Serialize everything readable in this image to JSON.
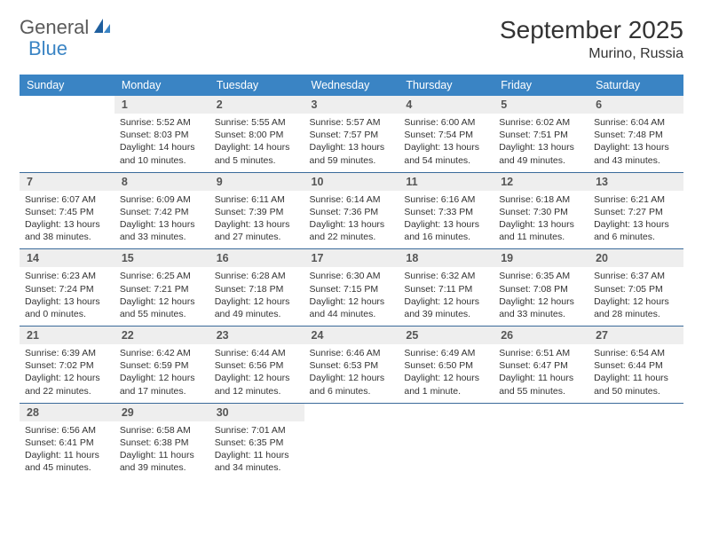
{
  "logo": {
    "part1": "General",
    "part2": "Blue"
  },
  "title": "September 2025",
  "location": "Murino, Russia",
  "days_of_week": [
    "Sunday",
    "Monday",
    "Tuesday",
    "Wednesday",
    "Thursday",
    "Friday",
    "Saturday"
  ],
  "colors": {
    "header_bg": "#3a84c4",
    "header_text": "#ffffff",
    "daynum_bg": "#eeeeee",
    "row_border": "#3a6a9a",
    "logo_blue": "#3a84c4",
    "logo_gray": "#5a5a5a"
  },
  "weeks": [
    [
      {
        "n": "",
        "sunrise": "",
        "sunset": "",
        "daylight": ""
      },
      {
        "n": "1",
        "sunrise": "Sunrise: 5:52 AM",
        "sunset": "Sunset: 8:03 PM",
        "daylight": "Daylight: 14 hours and 10 minutes."
      },
      {
        "n": "2",
        "sunrise": "Sunrise: 5:55 AM",
        "sunset": "Sunset: 8:00 PM",
        "daylight": "Daylight: 14 hours and 5 minutes."
      },
      {
        "n": "3",
        "sunrise": "Sunrise: 5:57 AM",
        "sunset": "Sunset: 7:57 PM",
        "daylight": "Daylight: 13 hours and 59 minutes."
      },
      {
        "n": "4",
        "sunrise": "Sunrise: 6:00 AM",
        "sunset": "Sunset: 7:54 PM",
        "daylight": "Daylight: 13 hours and 54 minutes."
      },
      {
        "n": "5",
        "sunrise": "Sunrise: 6:02 AM",
        "sunset": "Sunset: 7:51 PM",
        "daylight": "Daylight: 13 hours and 49 minutes."
      },
      {
        "n": "6",
        "sunrise": "Sunrise: 6:04 AM",
        "sunset": "Sunset: 7:48 PM",
        "daylight": "Daylight: 13 hours and 43 minutes."
      }
    ],
    [
      {
        "n": "7",
        "sunrise": "Sunrise: 6:07 AM",
        "sunset": "Sunset: 7:45 PM",
        "daylight": "Daylight: 13 hours and 38 minutes."
      },
      {
        "n": "8",
        "sunrise": "Sunrise: 6:09 AM",
        "sunset": "Sunset: 7:42 PM",
        "daylight": "Daylight: 13 hours and 33 minutes."
      },
      {
        "n": "9",
        "sunrise": "Sunrise: 6:11 AM",
        "sunset": "Sunset: 7:39 PM",
        "daylight": "Daylight: 13 hours and 27 minutes."
      },
      {
        "n": "10",
        "sunrise": "Sunrise: 6:14 AM",
        "sunset": "Sunset: 7:36 PM",
        "daylight": "Daylight: 13 hours and 22 minutes."
      },
      {
        "n": "11",
        "sunrise": "Sunrise: 6:16 AM",
        "sunset": "Sunset: 7:33 PM",
        "daylight": "Daylight: 13 hours and 16 minutes."
      },
      {
        "n": "12",
        "sunrise": "Sunrise: 6:18 AM",
        "sunset": "Sunset: 7:30 PM",
        "daylight": "Daylight: 13 hours and 11 minutes."
      },
      {
        "n": "13",
        "sunrise": "Sunrise: 6:21 AM",
        "sunset": "Sunset: 7:27 PM",
        "daylight": "Daylight: 13 hours and 6 minutes."
      }
    ],
    [
      {
        "n": "14",
        "sunrise": "Sunrise: 6:23 AM",
        "sunset": "Sunset: 7:24 PM",
        "daylight": "Daylight: 13 hours and 0 minutes."
      },
      {
        "n": "15",
        "sunrise": "Sunrise: 6:25 AM",
        "sunset": "Sunset: 7:21 PM",
        "daylight": "Daylight: 12 hours and 55 minutes."
      },
      {
        "n": "16",
        "sunrise": "Sunrise: 6:28 AM",
        "sunset": "Sunset: 7:18 PM",
        "daylight": "Daylight: 12 hours and 49 minutes."
      },
      {
        "n": "17",
        "sunrise": "Sunrise: 6:30 AM",
        "sunset": "Sunset: 7:15 PM",
        "daylight": "Daylight: 12 hours and 44 minutes."
      },
      {
        "n": "18",
        "sunrise": "Sunrise: 6:32 AM",
        "sunset": "Sunset: 7:11 PM",
        "daylight": "Daylight: 12 hours and 39 minutes."
      },
      {
        "n": "19",
        "sunrise": "Sunrise: 6:35 AM",
        "sunset": "Sunset: 7:08 PM",
        "daylight": "Daylight: 12 hours and 33 minutes."
      },
      {
        "n": "20",
        "sunrise": "Sunrise: 6:37 AM",
        "sunset": "Sunset: 7:05 PM",
        "daylight": "Daylight: 12 hours and 28 minutes."
      }
    ],
    [
      {
        "n": "21",
        "sunrise": "Sunrise: 6:39 AM",
        "sunset": "Sunset: 7:02 PM",
        "daylight": "Daylight: 12 hours and 22 minutes."
      },
      {
        "n": "22",
        "sunrise": "Sunrise: 6:42 AM",
        "sunset": "Sunset: 6:59 PM",
        "daylight": "Daylight: 12 hours and 17 minutes."
      },
      {
        "n": "23",
        "sunrise": "Sunrise: 6:44 AM",
        "sunset": "Sunset: 6:56 PM",
        "daylight": "Daylight: 12 hours and 12 minutes."
      },
      {
        "n": "24",
        "sunrise": "Sunrise: 6:46 AM",
        "sunset": "Sunset: 6:53 PM",
        "daylight": "Daylight: 12 hours and 6 minutes."
      },
      {
        "n": "25",
        "sunrise": "Sunrise: 6:49 AM",
        "sunset": "Sunset: 6:50 PM",
        "daylight": "Daylight: 12 hours and 1 minute."
      },
      {
        "n": "26",
        "sunrise": "Sunrise: 6:51 AM",
        "sunset": "Sunset: 6:47 PM",
        "daylight": "Daylight: 11 hours and 55 minutes."
      },
      {
        "n": "27",
        "sunrise": "Sunrise: 6:54 AM",
        "sunset": "Sunset: 6:44 PM",
        "daylight": "Daylight: 11 hours and 50 minutes."
      }
    ],
    [
      {
        "n": "28",
        "sunrise": "Sunrise: 6:56 AM",
        "sunset": "Sunset: 6:41 PM",
        "daylight": "Daylight: 11 hours and 45 minutes."
      },
      {
        "n": "29",
        "sunrise": "Sunrise: 6:58 AM",
        "sunset": "Sunset: 6:38 PM",
        "daylight": "Daylight: 11 hours and 39 minutes."
      },
      {
        "n": "30",
        "sunrise": "Sunrise: 7:01 AM",
        "sunset": "Sunset: 6:35 PM",
        "daylight": "Daylight: 11 hours and 34 minutes."
      },
      {
        "n": "",
        "sunrise": "",
        "sunset": "",
        "daylight": ""
      },
      {
        "n": "",
        "sunrise": "",
        "sunset": "",
        "daylight": ""
      },
      {
        "n": "",
        "sunrise": "",
        "sunset": "",
        "daylight": ""
      },
      {
        "n": "",
        "sunrise": "",
        "sunset": "",
        "daylight": ""
      }
    ]
  ]
}
